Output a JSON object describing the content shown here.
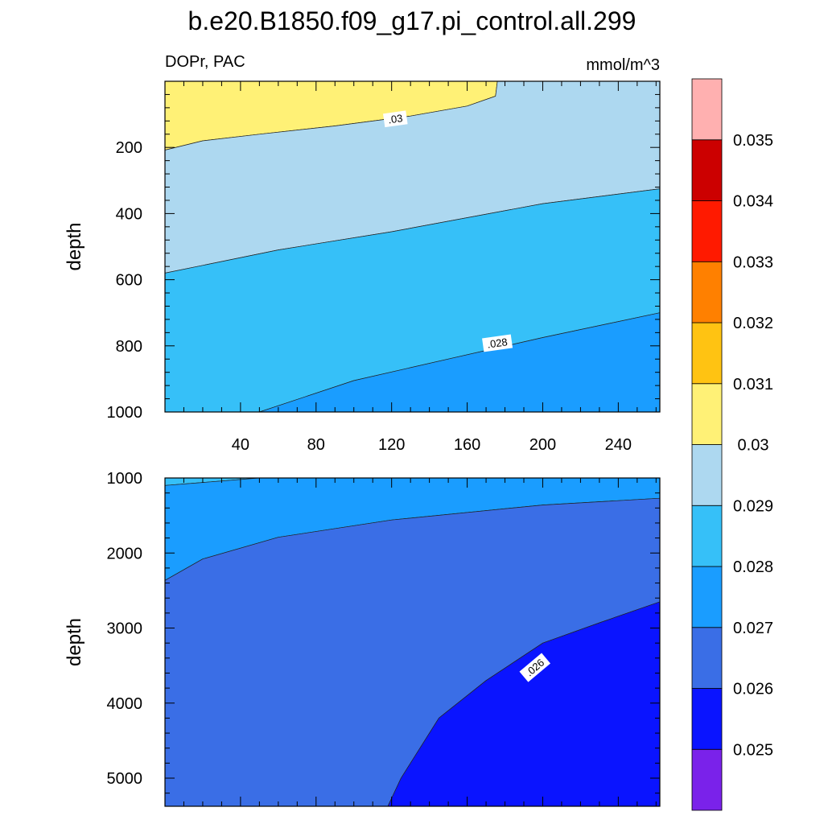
{
  "chart_data": [
    {
      "type": "heatmap",
      "title": "b.e20.B1850.f09_g17.pi_control.all.299",
      "subtitle_left": "DOPr, PAC",
      "subtitle_right": "mmol/m^3",
      "xlabel": "",
      "ylabel": "depth",
      "x_ticks": [
        "40",
        "80",
        "120",
        "160",
        "200",
        "240"
      ],
      "x_tick_values": [
        40,
        80,
        120,
        160,
        200,
        240
      ],
      "xlim": [
        0,
        262
      ],
      "y_ticks": [
        "200",
        "400",
        "600",
        "800",
        "1000"
      ],
      "y_tick_values": [
        200,
        400,
        600,
        800,
        1000
      ],
      "ylim": [
        0,
        1000
      ],
      "regions": [
        {
          "level": "0.030-0.031",
          "color": "#FFF176",
          "points": [
            [
              0,
              0
            ],
            [
              176,
              0
            ],
            [
              175,
              45
            ],
            [
              160,
              75
            ],
            [
              130,
              105
            ],
            [
              90,
              135
            ],
            [
              50,
              160
            ],
            [
              20,
              180
            ],
            [
              0,
              208
            ]
          ]
        },
        {
          "level": "0.029-0.030",
          "color": "#ADD8F0",
          "points": [
            [
              0,
              208
            ],
            [
              20,
              180
            ],
            [
              50,
              160
            ],
            [
              90,
              135
            ],
            [
              130,
              105
            ],
            [
              160,
              75
            ],
            [
              175,
              45
            ],
            [
              176,
              0
            ],
            [
              262,
              0
            ],
            [
              262,
              325
            ],
            [
              200,
              370
            ],
            [
              120,
              455
            ],
            [
              60,
              510
            ],
            [
              0,
              580
            ]
          ]
        },
        {
          "level": "0.028-0.029",
          "color": "#36C0F8",
          "points": [
            [
              0,
              580
            ],
            [
              60,
              510
            ],
            [
              120,
              455
            ],
            [
              200,
              370
            ],
            [
              262,
              325
            ],
            [
              262,
              700
            ],
            [
              200,
              775
            ],
            [
              150,
              840
            ],
            [
              100,
              905
            ],
            [
              50,
              1000
            ],
            [
              0,
              1000
            ]
          ]
        },
        {
          "level": "0.027-0.028",
          "color": "#1A9DFF",
          "points": [
            [
              50,
              1000
            ],
            [
              100,
              905
            ],
            [
              150,
              840
            ],
            [
              200,
              775
            ],
            [
              262,
              700
            ],
            [
              262,
              1000
            ]
          ]
        }
      ],
      "contour_labels": [
        {
          "text": ".03",
          "x": 122,
          "y": 115
        },
        {
          "text": ".028",
          "x": 176,
          "y": 793
        }
      ]
    },
    {
      "type": "heatmap",
      "xlabel": "",
      "ylabel": "depth",
      "xlim": [
        0,
        262
      ],
      "y_ticks": [
        "1000",
        "2000",
        "3000",
        "4000",
        "5000"
      ],
      "y_tick_values": [
        1000,
        2000,
        3000,
        4000,
        5000
      ],
      "ylim": [
        1000,
        5375
      ],
      "regions": [
        {
          "level": "0.028-0.029",
          "color": "#36C0F8",
          "points": [
            [
              0,
              1000
            ],
            [
              50,
              1000
            ],
            [
              0,
              1100
            ]
          ]
        },
        {
          "level": "0.027-0.028",
          "color": "#1A9DFF",
          "points": [
            [
              0,
              1100
            ],
            [
              50,
              1000
            ],
            [
              262,
              1000
            ],
            [
              262,
              1270
            ],
            [
              200,
              1360
            ],
            [
              120,
              1560
            ],
            [
              60,
              1790
            ],
            [
              20,
              2080
            ],
            [
              0,
              2365
            ]
          ]
        },
        {
          "level": "0.026-0.027",
          "color": "#3A6EE6",
          "points": [
            [
              0,
              2365
            ],
            [
              20,
              2080
            ],
            [
              60,
              1790
            ],
            [
              120,
              1560
            ],
            [
              200,
              1360
            ],
            [
              262,
              1270
            ],
            [
              262,
              2650
            ],
            [
              230,
              2930
            ],
            [
              200,
              3200
            ],
            [
              170,
              3700
            ],
            [
              145,
              4200
            ],
            [
              125,
              5000
            ],
            [
              118,
              5375
            ],
            [
              0,
              5375
            ]
          ]
        },
        {
          "level": "0.025-0.026",
          "color": "#0A14FF",
          "points": [
            [
              118,
              5375
            ],
            [
              125,
              5000
            ],
            [
              145,
              4200
            ],
            [
              170,
              3700
            ],
            [
              200,
              3200
            ],
            [
              230,
              2930
            ],
            [
              262,
              2650
            ],
            [
              262,
              5375
            ]
          ]
        }
      ],
      "contour_labels": [
        {
          "text": ".026",
          "x": 196,
          "y": 3530,
          "rotate": -40
        }
      ]
    }
  ],
  "colorbar": {
    "colors": [
      "#7A22EA",
      "#0A14FF",
      "#3A6EE6",
      "#1A9DFF",
      "#36C0F8",
      "#ADD8F0",
      "#FFF176",
      "#FFC312",
      "#FF8000",
      "#FF1A00",
      "#CC0000",
      "#FFB0B0"
    ],
    "labels": [
      "0.025",
      "0.026",
      "0.027",
      "0.028",
      "0.029",
      "0.03",
      "0.031",
      "0.032",
      "0.033",
      "0.034",
      "0.035"
    ]
  }
}
